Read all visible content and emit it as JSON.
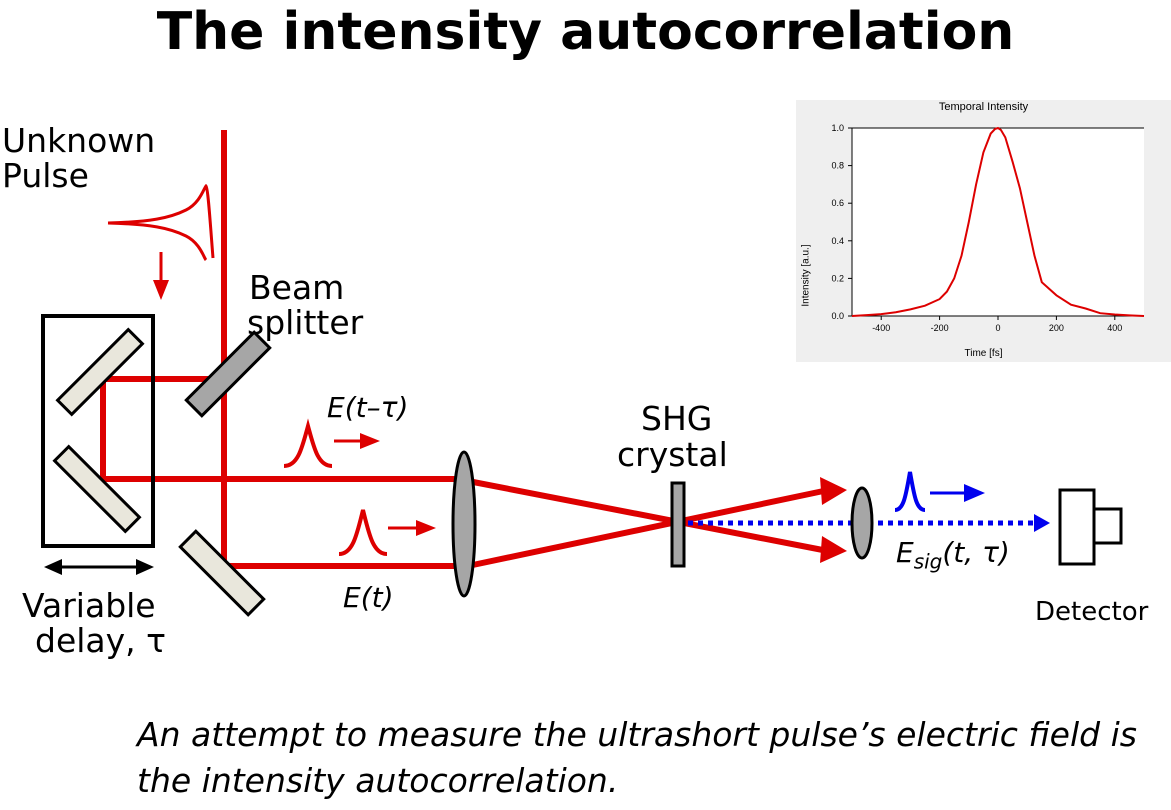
{
  "title": "The intensity autocorrelation",
  "labels": {
    "unknown_pulse_line1": "Unknown",
    "unknown_pulse_line2": "Pulse",
    "beam_splitter_line1": "Beam",
    "beam_splitter_line2": "splitter",
    "delayed_field": "E(t–τ)",
    "field": "E(t)",
    "shg_line1": "SHG",
    "shg_line2": "crystal",
    "signal_field_main": "E",
    "signal_field_sub": "sig",
    "signal_field_args": "(t, τ)",
    "variable_delay_line1": "Variable",
    "variable_delay_line2": "delay, τ",
    "detector": "Detector"
  },
  "caption": "An attempt to measure the ultrashort pulse’s electric field is the intensity autocorrelation.",
  "colors": {
    "beam": "#dd0000",
    "signal": "#0000ee",
    "optic_gray": "#a6a6a6",
    "mirror_fill": "#e9e7dc",
    "inset_bg": "#efefef"
  },
  "chart_data": {
    "type": "line",
    "title": "Temporal Intensity",
    "xlabel": "Time [fs]",
    "ylabel": "Intensity [a.u.]",
    "xlim": [
      -500,
      500
    ],
    "ylim": [
      0,
      1.0
    ],
    "xticks": [
      -400,
      -200,
      0,
      200,
      400
    ],
    "yticks": [
      0.0,
      0.2,
      0.4,
      0.6,
      0.8,
      1.0
    ],
    "ytick_labels": [
      "0.0",
      "0.2",
      "0.4",
      "0.6",
      "0.8",
      "1.0"
    ],
    "grid": false,
    "series": [
      {
        "x": [
          -500,
          -450,
          -400,
          -350,
          -300,
          -250,
          -200,
          -175,
          -150,
          -125,
          -100,
          -75,
          -50,
          -25,
          -10,
          0,
          10,
          25,
          50,
          75,
          100,
          125,
          150,
          200,
          250,
          300,
          350,
          400,
          450,
          500
        ],
        "y": [
          0.0,
          0.005,
          0.01,
          0.02,
          0.035,
          0.055,
          0.09,
          0.13,
          0.2,
          0.32,
          0.5,
          0.7,
          0.87,
          0.97,
          0.995,
          1.0,
          0.99,
          0.95,
          0.82,
          0.68,
          0.5,
          0.32,
          0.18,
          0.11,
          0.06,
          0.04,
          0.015,
          0.008,
          0.003,
          0.0
        ],
        "color": "#dd0000"
      }
    ]
  }
}
